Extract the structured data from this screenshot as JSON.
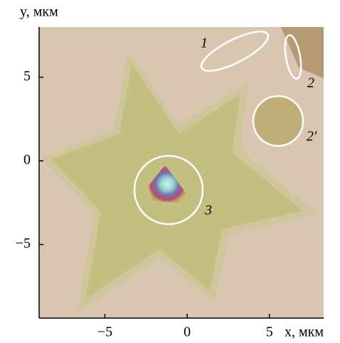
{
  "chart_data": {
    "type": "image",
    "x_label": "x, мкм",
    "y_label": "y, мкм",
    "xlim": [
      -9,
      8.3
    ],
    "ylim": [
      -9.4,
      8
    ],
    "xticks": [
      {
        "value": -5,
        "label": "−5"
      },
      0,
      5
    ],
    "yticks": [
      {
        "value": -5,
        "label": "−5"
      },
      0,
      5
    ],
    "annotations": [
      "1",
      "2",
      "2′",
      "3"
    ]
  }
}
